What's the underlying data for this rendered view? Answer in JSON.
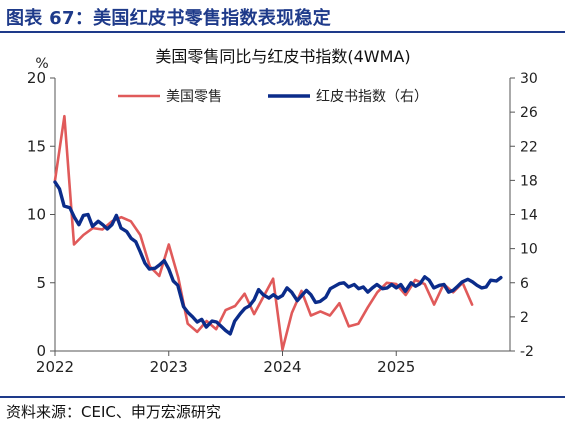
{
  "header": {
    "title": "图表 67：美国红皮书零售指数表现稳定"
  },
  "footer": {
    "source": "资料来源：CEIC、申万宏源研究"
  },
  "colors": {
    "title_blue": "#1e3a8a",
    "series_red": "#e05a5a",
    "series_navy": "#0b2c8a"
  },
  "chart_data": {
    "type": "line",
    "title": "美国零售同比与红皮书指数(4WMA)",
    "left_axis_unit": "%",
    "left_axis": {
      "ylim": [
        0,
        20
      ],
      "ticks": [
        "0",
        "5",
        "10",
        "15",
        "20"
      ]
    },
    "right_axis": {
      "ylim": [
        -2,
        30
      ],
      "ticks": [
        "-2",
        "2",
        "6",
        "10",
        "14",
        "18",
        "22",
        "26",
        "30"
      ]
    },
    "x_ticks": [
      "2022",
      "2023",
      "2024",
      "2025"
    ],
    "xlim": [
      2022.0,
      2026.0
    ],
    "legend_position": "top",
    "grid": false,
    "series": [
      {
        "name": "美国零售",
        "axis": "left",
        "color": "#e05a5a",
        "points": [
          [
            2022.0,
            12.5
          ],
          [
            2022.083,
            17.2
          ],
          [
            2022.167,
            7.8
          ],
          [
            2022.25,
            8.5
          ],
          [
            2022.333,
            9.0
          ],
          [
            2022.417,
            8.9
          ],
          [
            2022.5,
            9.5
          ],
          [
            2022.583,
            9.8
          ],
          [
            2022.667,
            9.5
          ],
          [
            2022.75,
            8.5
          ],
          [
            2022.833,
            6.2
          ],
          [
            2022.917,
            5.5
          ],
          [
            2023.0,
            7.8
          ],
          [
            2023.083,
            5.4
          ],
          [
            2023.167,
            2.0
          ],
          [
            2023.25,
            1.4
          ],
          [
            2023.333,
            2.2
          ],
          [
            2023.417,
            1.6
          ],
          [
            2023.5,
            3.0
          ],
          [
            2023.583,
            3.3
          ],
          [
            2023.667,
            4.2
          ],
          [
            2023.75,
            2.7
          ],
          [
            2023.917,
            5.3
          ],
          [
            2024.0,
            0.1
          ],
          [
            2024.083,
            2.8
          ],
          [
            2024.167,
            4.4
          ],
          [
            2024.25,
            2.6
          ],
          [
            2024.333,
            2.9
          ],
          [
            2024.417,
            2.6
          ],
          [
            2024.5,
            3.5
          ],
          [
            2024.583,
            1.8
          ],
          [
            2024.667,
            2.0
          ],
          [
            2024.75,
            3.2
          ],
          [
            2024.833,
            4.3
          ],
          [
            2024.917,
            5.0
          ],
          [
            2025.0,
            4.9
          ],
          [
            2025.083,
            4.1
          ],
          [
            2025.167,
            5.2
          ],
          [
            2025.25,
            4.9
          ],
          [
            2025.333,
            3.4
          ],
          [
            2025.417,
            4.9
          ],
          [
            2025.5,
            4.3
          ],
          [
            2025.583,
            5.0
          ],
          [
            2025.667,
            3.4
          ]
        ]
      },
      {
        "name": "红皮书指数（右）",
        "axis": "right",
        "color": "#0b2c8a",
        "points": [
          [
            2022.0,
            17.8
          ],
          [
            2022.04,
            17.0
          ],
          [
            2022.08,
            15.0
          ],
          [
            2022.13,
            14.8
          ],
          [
            2022.17,
            13.7
          ],
          [
            2022.21,
            12.8
          ],
          [
            2022.25,
            13.9
          ],
          [
            2022.29,
            14.0
          ],
          [
            2022.33,
            12.6
          ],
          [
            2022.38,
            13.2
          ],
          [
            2022.42,
            12.8
          ],
          [
            2022.46,
            12.3
          ],
          [
            2022.5,
            12.8
          ],
          [
            2022.54,
            13.9
          ],
          [
            2022.58,
            12.4
          ],
          [
            2022.63,
            12.0
          ],
          [
            2022.67,
            11.2
          ],
          [
            2022.71,
            10.8
          ],
          [
            2022.75,
            9.6
          ],
          [
            2022.79,
            8.3
          ],
          [
            2022.83,
            7.6
          ],
          [
            2022.88,
            7.7
          ],
          [
            2022.92,
            8.1
          ],
          [
            2022.96,
            8.6
          ],
          [
            2023.0,
            7.6
          ],
          [
            2023.04,
            6.2
          ],
          [
            2023.08,
            5.7
          ],
          [
            2023.13,
            3.2
          ],
          [
            2023.17,
            2.5
          ],
          [
            2023.21,
            2.0
          ],
          [
            2023.25,
            1.4
          ],
          [
            2023.29,
            1.7
          ],
          [
            2023.33,
            0.8
          ],
          [
            2023.38,
            1.5
          ],
          [
            2023.42,
            1.4
          ],
          [
            2023.46,
            0.9
          ],
          [
            2023.5,
            0.4
          ],
          [
            2023.54,
            0.0
          ],
          [
            2023.58,
            1.5
          ],
          [
            2023.63,
            2.4
          ],
          [
            2023.67,
            3.0
          ],
          [
            2023.71,
            3.3
          ],
          [
            2023.75,
            4.0
          ],
          [
            2023.79,
            5.2
          ],
          [
            2023.83,
            4.6
          ],
          [
            2023.88,
            4.2
          ],
          [
            2023.92,
            4.6
          ],
          [
            2023.96,
            4.2
          ],
          [
            2024.0,
            4.5
          ],
          [
            2024.04,
            5.4
          ],
          [
            2024.08,
            4.9
          ],
          [
            2024.13,
            3.9
          ],
          [
            2024.17,
            4.5
          ],
          [
            2024.21,
            5.1
          ],
          [
            2024.25,
            4.6
          ],
          [
            2024.29,
            3.7
          ],
          [
            2024.33,
            3.8
          ],
          [
            2024.38,
            4.3
          ],
          [
            2024.42,
            5.3
          ],
          [
            2024.46,
            5.6
          ],
          [
            2024.5,
            5.9
          ],
          [
            2024.54,
            6.0
          ],
          [
            2024.58,
            5.5
          ],
          [
            2024.63,
            5.8
          ],
          [
            2024.67,
            5.3
          ],
          [
            2024.71,
            5.5
          ],
          [
            2024.75,
            4.9
          ],
          [
            2024.79,
            5.4
          ],
          [
            2024.83,
            5.8
          ],
          [
            2024.88,
            5.3
          ],
          [
            2024.92,
            5.4
          ],
          [
            2024.96,
            5.8
          ],
          [
            2025.0,
            5.4
          ],
          [
            2025.04,
            5.8
          ],
          [
            2025.08,
            5.0
          ],
          [
            2025.13,
            6.0
          ],
          [
            2025.17,
            5.6
          ],
          [
            2025.21,
            5.9
          ],
          [
            2025.25,
            6.7
          ],
          [
            2025.29,
            6.3
          ],
          [
            2025.33,
            5.4
          ],
          [
            2025.38,
            5.7
          ],
          [
            2025.42,
            5.8
          ],
          [
            2025.46,
            4.9
          ],
          [
            2025.5,
            5.1
          ],
          [
            2025.54,
            5.6
          ],
          [
            2025.58,
            6.1
          ],
          [
            2025.63,
            6.4
          ],
          [
            2025.67,
            6.1
          ],
          [
            2025.71,
            5.7
          ],
          [
            2025.75,
            5.4
          ],
          [
            2025.79,
            5.5
          ],
          [
            2025.83,
            6.3
          ],
          [
            2025.88,
            6.2
          ],
          [
            2025.92,
            6.6
          ]
        ]
      }
    ]
  }
}
